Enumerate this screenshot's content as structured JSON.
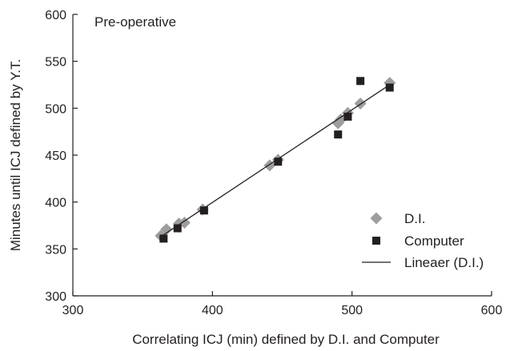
{
  "chart_data": {
    "type": "scatter",
    "annotation": "Pre-operative",
    "xlabel": "Correlating ICJ (min) defined by D.I. and Computer",
    "ylabel": "Minutes until ICJ defined by Y.T.",
    "xlim": [
      300,
      600
    ],
    "ylim": [
      300,
      600
    ],
    "xticks": [
      300,
      400,
      500,
      600
    ],
    "yticks": [
      300,
      350,
      400,
      450,
      500,
      550,
      600
    ],
    "grid": false,
    "legend_position": "bottom-right",
    "series": [
      {
        "name": "D.I.",
        "marker": "diamond",
        "color": "#9d9d9d",
        "points": [
          [
            363,
            364
          ],
          [
            367,
            371
          ],
          [
            376,
            377
          ],
          [
            380,
            378
          ],
          [
            393,
            392
          ],
          [
            441,
            439
          ],
          [
            447,
            445
          ],
          [
            490,
            484
          ],
          [
            492,
            488
          ],
          [
            497,
            495
          ],
          [
            506,
            505
          ],
          [
            527,
            527
          ]
        ]
      },
      {
        "name": "Computer",
        "marker": "square",
        "color": "#231f20",
        "points": [
          [
            365,
            361
          ],
          [
            375,
            372
          ],
          [
            394,
            391
          ],
          [
            447,
            443
          ],
          [
            490,
            472
          ],
          [
            497,
            491
          ],
          [
            506,
            529
          ],
          [
            527,
            522
          ]
        ]
      },
      {
        "name": "Lineaer (D.I.)",
        "type": "line",
        "color": "#231f20",
        "points": [
          [
            362,
            362
          ],
          [
            528,
            526
          ]
        ]
      }
    ]
  }
}
